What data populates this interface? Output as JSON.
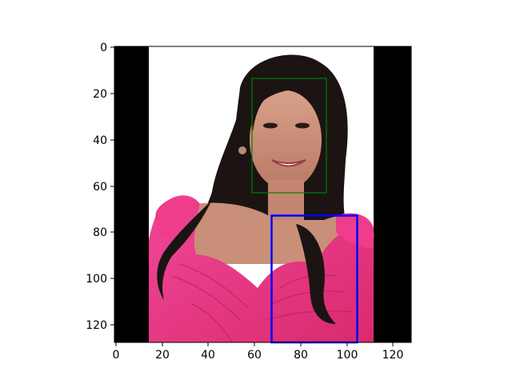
{
  "figure": {
    "axes": {
      "x_ticks": [
        "0",
        "20",
        "40",
        "60",
        "80",
        "100",
        "120"
      ],
      "y_ticks": [
        "0",
        "20",
        "40",
        "60",
        "80",
        "100",
        "120"
      ]
    },
    "image": {
      "description": "photo of a woman with long dark wavy hair wearing a pink ruffled top, centered on white with black side bars",
      "colors": {
        "side_bars": "#000000",
        "background": "#ffffff",
        "hair": "#1b1412",
        "skin": "#c98f78",
        "top": "#e8327c"
      }
    },
    "boxes": [
      {
        "name": "face-box",
        "color": "#008000"
      },
      {
        "name": "torso-box",
        "color": "#0000ff"
      }
    ]
  }
}
